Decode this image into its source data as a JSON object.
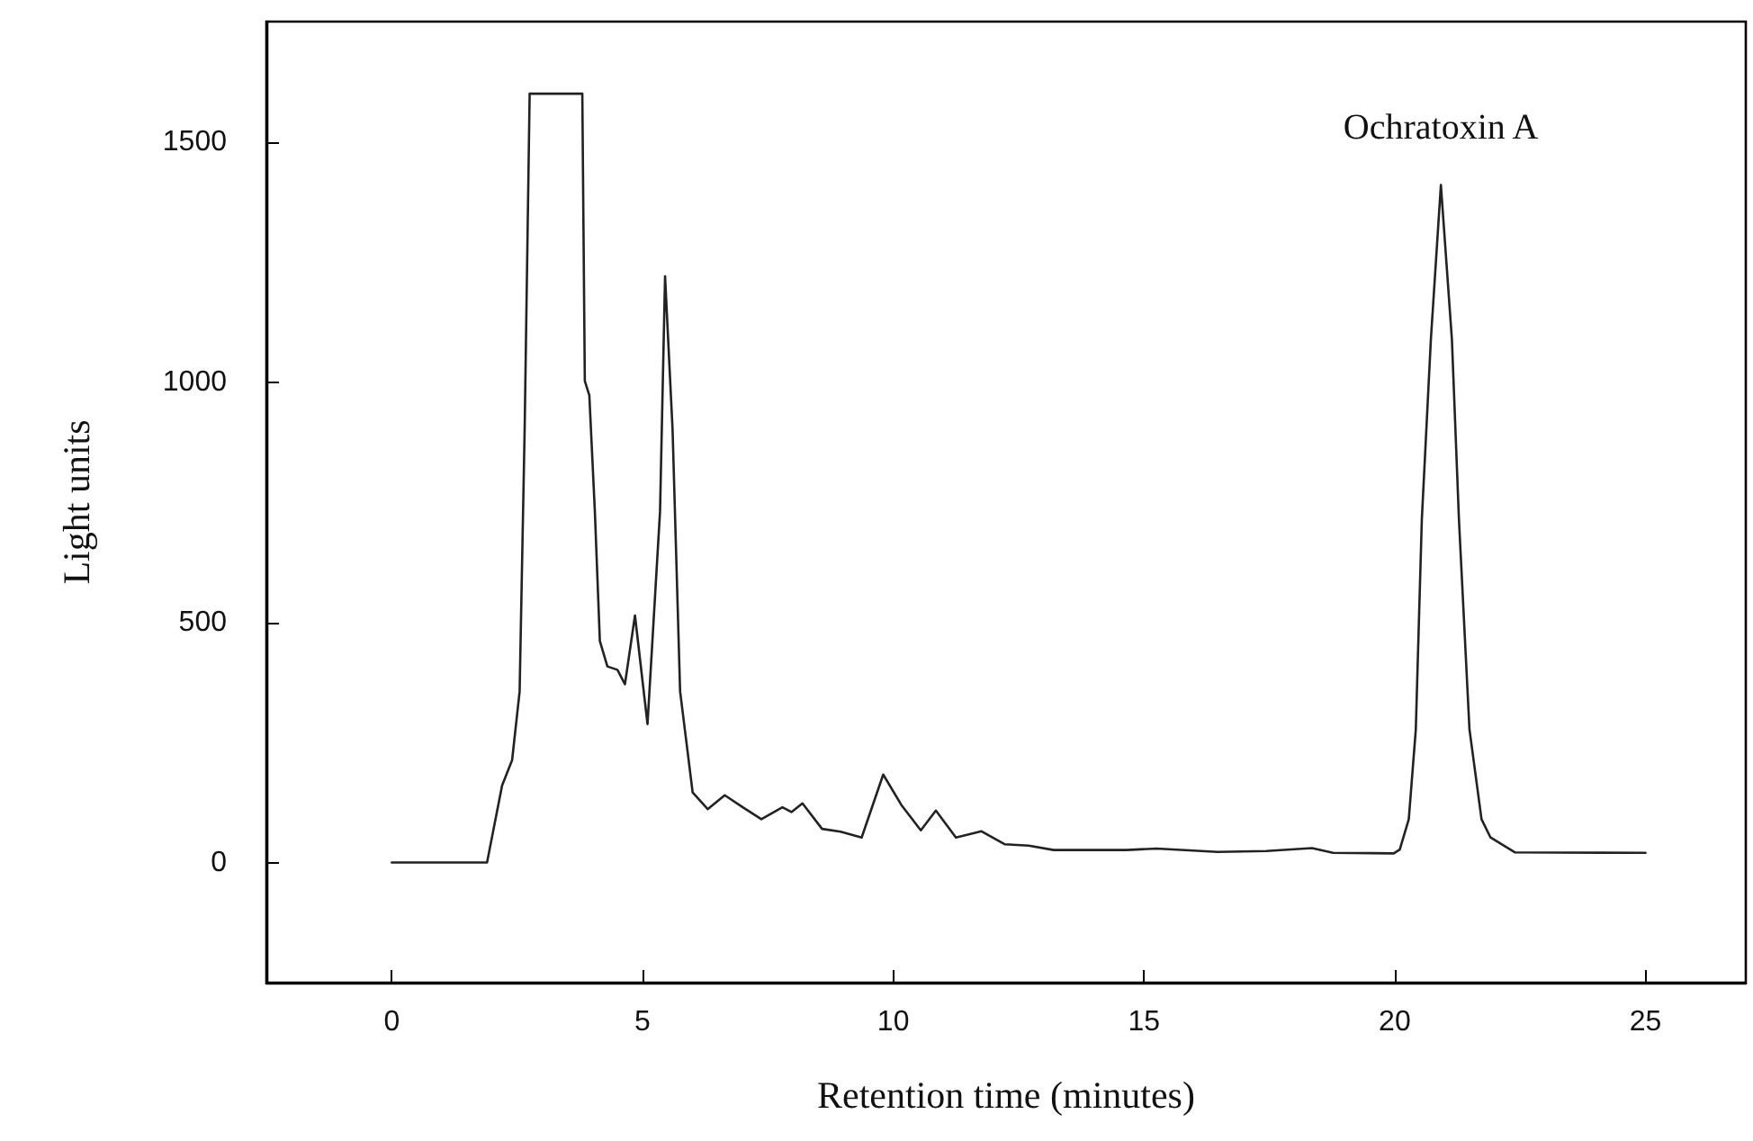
{
  "chart_data": {
    "type": "line",
    "xlabel": "Retention time (minutes)",
    "ylabel": "Light units",
    "annotations": [
      {
        "text": "Ochratoxin A",
        "x": 20.92,
        "y": 1410
      }
    ],
    "xlim": [
      -2.5,
      27
    ],
    "xticks": [
      0,
      5,
      10,
      15,
      20,
      25
    ],
    "ylim": [
      -250,
      1750
    ],
    "yticks": [
      0,
      500,
      1000,
      1500
    ],
    "grid": false,
    "marker": "none",
    "line_style": "solid",
    "series": [
      {
        "color": "#222222",
        "x": [
          0,
          1.0,
          1.9,
          2.2,
          2.4,
          2.55,
          2.65,
          2.75,
          3.8,
          3.85,
          3.94,
          4.05,
          4.15,
          4.3,
          4.5,
          4.65,
          4.85,
          5.1,
          5.35,
          5.45,
          5.6,
          5.75,
          6.0,
          6.3,
          6.64,
          7.0,
          7.37,
          7.79,
          7.97,
          8.19,
          8.58,
          8.95,
          9.37,
          9.8,
          10.16,
          10.55,
          10.85,
          11.25,
          11.76,
          12.22,
          12.7,
          13.2,
          14.65,
          15.25,
          16.47,
          17.44,
          18.35,
          18.77,
          19.98,
          20.1,
          20.28,
          20.42,
          20.54,
          20.72,
          20.92,
          21.14,
          21.28,
          21.49,
          21.73,
          21.91,
          22.4,
          25.0
        ],
        "values": [
          0,
          0,
          0,
          160,
          213,
          356,
          900,
          1600,
          1600,
          1002,
          972,
          731,
          461,
          408,
          401,
          371,
          514,
          288,
          731,
          1220,
          900,
          356,
          146,
          111,
          140,
          115,
          90,
          115,
          105,
          123,
          70,
          64,
          52,
          183,
          120,
          67,
          108,
          52,
          65,
          38,
          35,
          26,
          26,
          29,
          22,
          24,
          30,
          20,
          19,
          27,
          90,
          277,
          714,
          1088,
          1410,
          1088,
          714,
          277,
          90,
          52,
          21,
          20
        ]
      }
    ]
  }
}
